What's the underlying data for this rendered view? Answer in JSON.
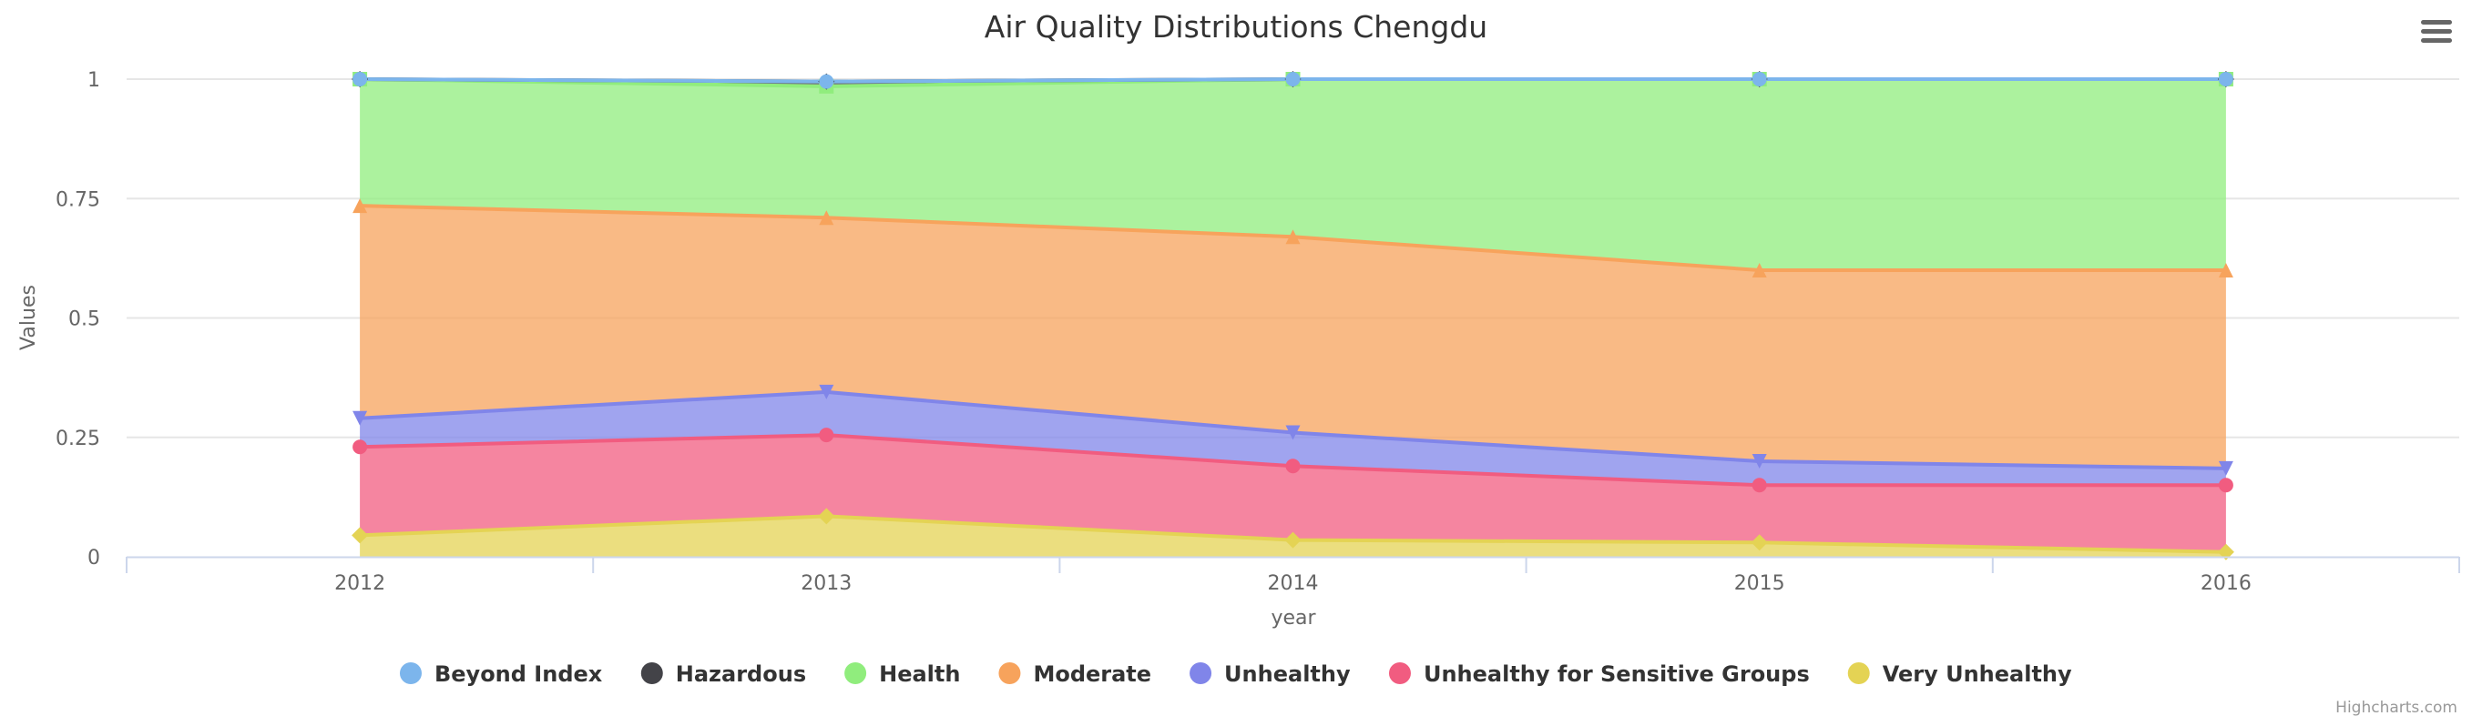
{
  "chart_data": {
    "type": "area",
    "stacking": "cumulative",
    "title": "Air Quality Distributions Chengdu",
    "xlabel": "year",
    "ylabel": "Values",
    "ylim": [
      0,
      1
    ],
    "y_ticks": [
      "0",
      "0.25",
      "0.5",
      "0.75",
      "1"
    ],
    "y_tick_values": [
      0,
      0.25,
      0.5,
      0.75,
      1
    ],
    "categories": [
      "2012",
      "2013",
      "2014",
      "2015",
      "2016"
    ],
    "grid": true,
    "legend_position": "bottom-center",
    "series": [
      {
        "name": "Very Unhealthy",
        "color": "#e4d354",
        "marker": "diamond",
        "values": [
          0.045,
          0.085,
          0.035,
          0.03,
          0.01
        ]
      },
      {
        "name": "Unhealthy for Sensitive Groups",
        "color": "#f15c80",
        "marker": "circle",
        "values": [
          0.185,
          0.17,
          0.155,
          0.12,
          0.14
        ]
      },
      {
        "name": "Unhealthy",
        "color": "#8085e9",
        "marker": "triangle-down",
        "values": [
          0.06,
          0.09,
          0.07,
          0.05,
          0.035
        ]
      },
      {
        "name": "Moderate",
        "color": "#f7a35c",
        "marker": "triangle",
        "values": [
          0.445,
          0.365,
          0.41,
          0.4,
          0.415
        ]
      },
      {
        "name": "Health",
        "color": "#90ed7d",
        "marker": "square",
        "values": [
          0.265,
          0.275,
          0.33,
          0.4,
          0.4
        ]
      },
      {
        "name": "Hazardous",
        "color": "#434348",
        "marker": "diamond",
        "values": [
          0.0,
          0.01,
          0.0,
          0.0,
          0.0
        ]
      },
      {
        "name": "Beyond Index",
        "color": "#7cb5ec",
        "marker": "circle",
        "values": [
          0.0,
          0.0,
          0.0,
          0.0,
          0.0
        ]
      }
    ],
    "legend_order": [
      "Beyond Index",
      "Hazardous",
      "Health",
      "Moderate",
      "Unhealthy",
      "Unhealthy for Sensitive Groups",
      "Very Unhealthy"
    ]
  },
  "credits": "Highcharts.com",
  "menu_icon": "hamburger-menu-icon"
}
